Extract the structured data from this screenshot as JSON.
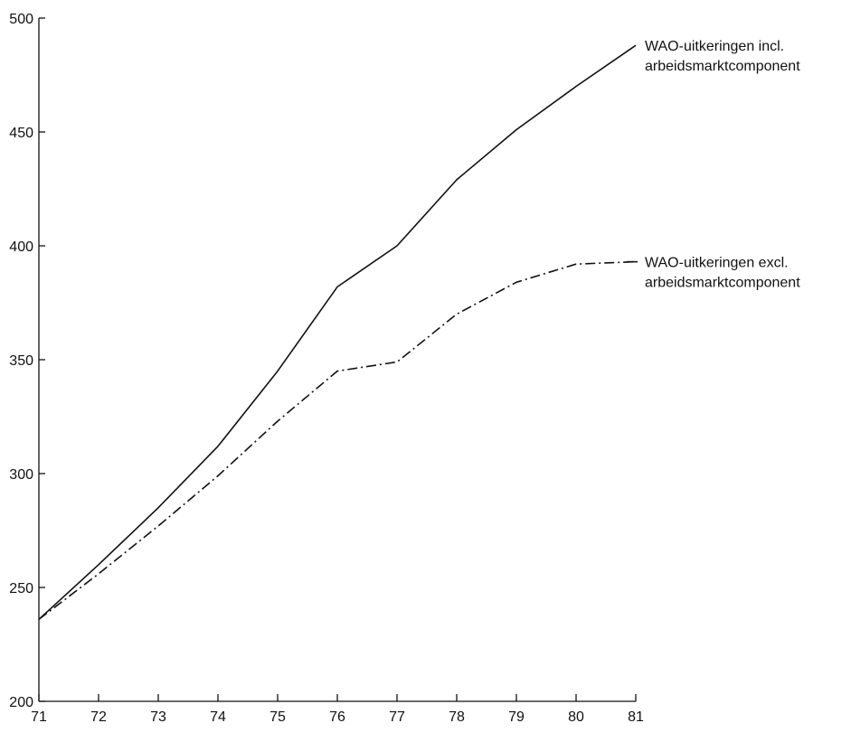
{
  "chart_data": {
    "type": "line",
    "title": "",
    "xlabel": "",
    "ylabel": "",
    "x": [
      71,
      72,
      73,
      74,
      75,
      76,
      77,
      78,
      79,
      80,
      81
    ],
    "xlim": [
      71,
      81
    ],
    "ylim": [
      200,
      500
    ],
    "y_ticks": [
      200,
      250,
      300,
      350,
      400,
      450,
      500
    ],
    "x_ticks": [
      71,
      72,
      73,
      74,
      75,
      76,
      77,
      78,
      79,
      80,
      81
    ],
    "grid": false,
    "legend": "inline labels at right end of each series",
    "series": [
      {
        "name": "WAO-uitkeringen incl. arbeidsmarktcomponent",
        "label_lines": [
          "WAO-uitkeringen incl.",
          "arbeidsmarktcomponent"
        ],
        "style": "solid",
        "values": [
          236,
          260,
          285,
          312,
          345,
          382,
          400,
          429,
          451,
          470,
          488
        ]
      },
      {
        "name": "WAO-uitkeringen excl. arbeidsmarktcomponent",
        "label_lines": [
          "WAO-uitkeringen excl.",
          "arbeidsmarktcomponent"
        ],
        "style": "dash-dot",
        "values": [
          236,
          256,
          277,
          299,
          323,
          345,
          349,
          370,
          384,
          392,
          393
        ]
      }
    ]
  }
}
